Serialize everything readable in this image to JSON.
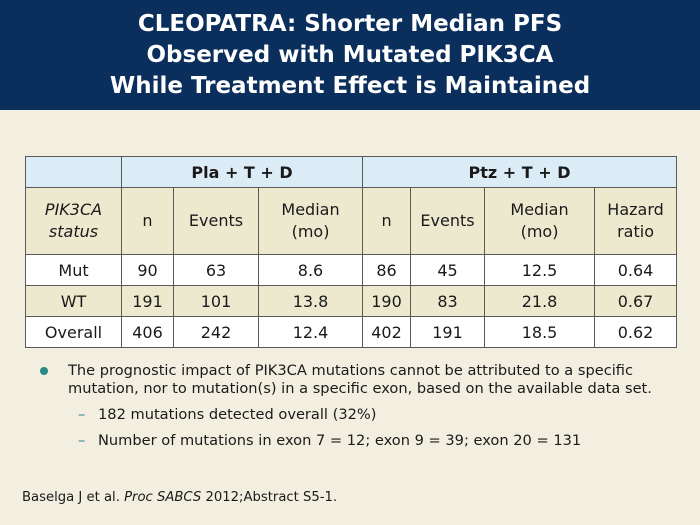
{
  "title": {
    "lines": [
      "CLEOPATRA: Shorter Median PFS",
      "Observed with Mutated PIK3CA",
      "While Treatment Effect is Maintained"
    ]
  },
  "table": {
    "group_headers": [
      "Pla + T + D",
      "Ptz + T + D"
    ],
    "status_header": [
      "PIK3CA",
      "status"
    ],
    "sub_headers": {
      "pla": [
        [
          "n"
        ],
        [
          "Events"
        ],
        [
          "Median",
          "(mo)"
        ]
      ],
      "ptz": [
        [
          "n"
        ],
        [
          "Events"
        ],
        [
          "Median",
          "(mo)"
        ],
        [
          "Hazard",
          "ratio"
        ]
      ]
    },
    "rows": [
      {
        "status": "Mut",
        "cells": [
          "90",
          "63",
          "8.6",
          "86",
          "45",
          "12.5",
          "0.64"
        ]
      },
      {
        "status": "WT",
        "cells": [
          "191",
          "101",
          "13.8",
          "190",
          "83",
          "21.8",
          "0.67"
        ]
      },
      {
        "status": "Overall",
        "cells": [
          "406",
          "242",
          "12.4",
          "402",
          "191",
          "18.5",
          "0.62"
        ]
      }
    ]
  },
  "bullets": {
    "main": "The prognostic impact of PIK3CA mutations cannot be attributed to a specific mutation, nor to mutation(s) in a specific exon, based on the available data set.",
    "sub": [
      "182 mutations detected overall (32%)",
      "Number of mutations in exon 7 = 12; exon 9 = 39; exon 20 = 131"
    ],
    "dash": "–"
  },
  "citation": {
    "prefix": "Baselga J et al. ",
    "journal": "Proc SABCS",
    "suffix": " 2012;Abstract S5-1."
  }
}
